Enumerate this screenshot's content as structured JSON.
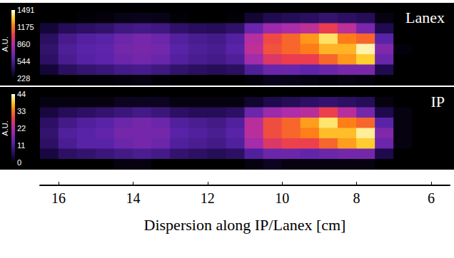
{
  "chart_data": [
    {
      "type": "heatmap",
      "title": "Lanex",
      "xlim": [
        16.5,
        5.5
      ],
      "tick_labels": false,
      "x": [
        16.25,
        15.75,
        15.25,
        14.75,
        14.25,
        13.75,
        13.25,
        12.75,
        12.25,
        11.75,
        11.25,
        10.75,
        10.25,
        9.75,
        9.25,
        8.75,
        8.25,
        7.75,
        7.25,
        6.75,
        6.25,
        5.75
      ],
      "cells": [
        [
          130,
          140,
          150,
          150,
          150,
          160,
          150,
          140,
          130,
          130,
          140,
          160,
          170,
          170,
          160,
          160,
          160,
          150,
          140,
          130,
          130,
          120
        ],
        [
          200,
          230,
          240,
          250,
          270,
          280,
          270,
          240,
          220,
          220,
          240,
          320,
          380,
          400,
          420,
          460,
          430,
          400,
          260,
          150,
          150,
          150
        ],
        [
          330,
          400,
          430,
          450,
          500,
          520,
          500,
          440,
          410,
          400,
          440,
          650,
          800,
          850,
          900,
          1050,
          900,
          700,
          380,
          180,
          160,
          150
        ],
        [
          420,
          530,
          580,
          600,
          660,
          690,
          660,
          580,
          540,
          520,
          580,
          880,
          1080,
          1150,
          1250,
          1400,
          1200,
          1150,
          600,
          220,
          180,
          150
        ],
        [
          450,
          560,
          600,
          620,
          680,
          700,
          680,
          600,
          560,
          540,
          600,
          900,
          1100,
          1150,
          1200,
          1300,
          1300,
          1450,
          720,
          250,
          200,
          150
        ],
        [
          430,
          540,
          590,
          610,
          660,
          680,
          650,
          580,
          540,
          520,
          560,
          820,
          1000,
          1050,
          1050,
          1150,
          1250,
          1350,
          650,
          230,
          190,
          150
        ],
        [
          330,
          420,
          460,
          480,
          520,
          530,
          500,
          450,
          420,
          400,
          420,
          560,
          650,
          650,
          620,
          650,
          700,
          700,
          380,
          180,
          160,
          150
        ],
        [
          180,
          220,
          240,
          240,
          250,
          260,
          240,
          220,
          200,
          190,
          200,
          250,
          280,
          270,
          260,
          250,
          260,
          250,
          200,
          150,
          150,
          140
        ]
      ],
      "colorbar": {
        "label": "A.U.",
        "range": [
          228,
          1491
        ],
        "ticks": [
          228,
          544,
          860,
          1175,
          1491
        ]
      }
    },
    {
      "type": "heatmap",
      "title": "IP",
      "xlabel": "Dispersion along IP/Lanex [cm]",
      "xlim": [
        16.5,
        5.5
      ],
      "xticks": [
        16,
        14,
        12,
        10,
        8,
        6
      ],
      "tick_labels": "x",
      "x": [
        16.25,
        15.75,
        15.25,
        14.75,
        14.25,
        13.75,
        13.25,
        12.75,
        12.25,
        11.75,
        11.25,
        10.75,
        10.25,
        9.75,
        9.25,
        8.75,
        8.25,
        7.75,
        7.25,
        6.75,
        6.25,
        5.75
      ],
      "cells": [
        [
          0,
          0,
          0,
          0,
          0,
          0,
          0,
          0,
          0,
          0,
          0,
          0,
          0,
          0,
          0,
          0,
          0,
          0,
          0,
          0,
          0,
          0
        ],
        [
          1,
          1,
          1,
          1,
          2,
          2,
          2,
          1,
          1,
          1,
          1,
          3,
          5,
          6,
          7,
          8,
          7,
          6,
          1,
          0,
          0,
          0
        ],
        [
          4,
          6,
          7,
          8,
          9,
          10,
          9,
          7,
          6,
          6,
          7,
          15,
          20,
          22,
          23,
          29,
          23,
          16,
          5,
          1,
          0,
          0
        ],
        [
          7,
          10,
          12,
          13,
          15,
          16,
          15,
          12,
          11,
          10,
          12,
          23,
          30,
          32,
          36,
          41,
          34,
          32,
          13,
          1,
          0,
          0
        ],
        [
          8,
          12,
          13,
          14,
          16,
          16,
          16,
          13,
          12,
          11,
          13,
          23,
          30,
          32,
          34,
          38,
          38,
          42,
          17,
          1,
          0,
          0
        ],
        [
          7,
          11,
          13,
          13,
          15,
          16,
          15,
          12,
          11,
          10,
          12,
          21,
          27,
          29,
          29,
          32,
          36,
          39,
          15,
          1,
          0,
          0
        ],
        [
          4,
          7,
          8,
          9,
          10,
          11,
          10,
          8,
          7,
          6,
          7,
          12,
          15,
          15,
          14,
          15,
          16,
          16,
          5,
          0,
          0,
          0
        ],
        [
          0,
          0,
          0,
          0,
          1,
          1,
          0,
          0,
          0,
          0,
          0,
          1,
          2,
          1,
          1,
          1,
          1,
          1,
          0,
          0,
          0,
          0
        ]
      ],
      "colorbar": {
        "label": "A.U.",
        "range": [
          0,
          44
        ],
        "ticks": [
          0,
          11,
          22,
          33,
          44
        ]
      }
    }
  ]
}
